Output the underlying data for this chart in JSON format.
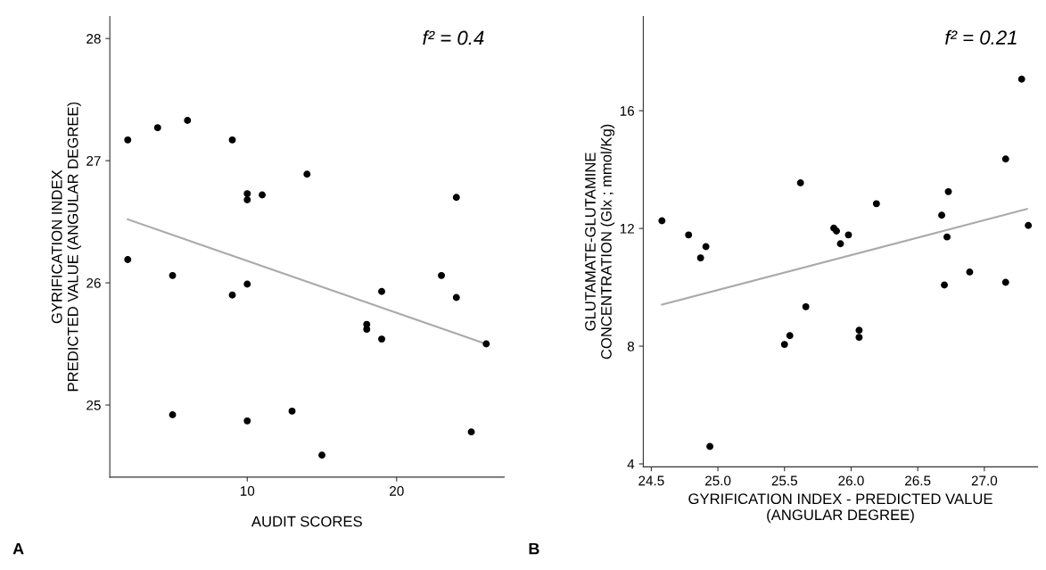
{
  "chart_data": [
    {
      "type": "scatter",
      "xlabel": "AUDIT SCORES",
      "ylabel": "GYRIFICATION INDEX\nPREDICTED VALUE (ANGULAR DEGREE)",
      "annotations": [
        "f² = 0.4",
        "A"
      ],
      "xlim": [
        0.8,
        27.2
      ],
      "xticks": [
        10,
        20
      ],
      "ylim": [
        24.41,
        28.18
      ],
      "yticks": [
        25,
        26,
        27,
        28
      ],
      "grid": false,
      "series": [
        {
          "marker": "circle",
          "color": "#000000",
          "x": [
            2,
            4,
            6,
            9,
            14,
            10,
            10,
            11,
            24,
            2,
            5,
            10,
            9,
            19,
            23,
            24,
            18,
            18,
            19,
            26,
            5,
            10,
            13,
            15,
            25
          ],
          "values": [
            27.17,
            27.27,
            27.33,
            27.17,
            26.89,
            26.73,
            26.68,
            26.72,
            26.7,
            26.19,
            26.06,
            25.99,
            25.9,
            25.93,
            26.06,
            25.88,
            25.66,
            25.62,
            25.54,
            25.5,
            24.92,
            24.87,
            24.95,
            24.59,
            24.78
          ]
        },
        {
          "type": "line",
          "marker": "none",
          "color": "#aaaaaa",
          "x": [
            2,
            26
          ],
          "values": [
            26.52,
            25.5
          ]
        }
      ]
    },
    {
      "type": "scatter",
      "xlabel": "GYRIFICATION INDEX - PREDICTED VALUE\n(ANGULAR DEGREE)",
      "ylabel": "GLUTAMATE-GLUTAMINE\nCONCENTRATION (Glx ; mmol/Kg)",
      "annotations": [
        "f² = 0.21",
        "B"
      ],
      "xlim": [
        24.44,
        27.4
      ],
      "xticks": [
        {
          "value": 24.5,
          "label": "24.5"
        },
        {
          "value": 25,
          "label": "25.0"
        },
        {
          "value": 25.5,
          "label": "25.5"
        },
        {
          "value": 26,
          "label": "26.0"
        },
        {
          "value": 26.5,
          "label": "26.5"
        },
        {
          "value": 27,
          "label": "27.0"
        }
      ],
      "ylim": [
        3.9,
        19.2
      ],
      "yticks": [
        4,
        8,
        12,
        16
      ],
      "grid": false,
      "series": [
        {
          "marker": "circle",
          "color": "#000000",
          "x": [
            24.58,
            24.78,
            24.87,
            24.91,
            24.94,
            25.5,
            25.54,
            25.62,
            25.66,
            25.87,
            25.89,
            25.92,
            25.98,
            26.06,
            26.06,
            26.19,
            26.68,
            26.7,
            26.72,
            26.73,
            26.89,
            27.16,
            27.16,
            27.28,
            27.33
          ],
          "values": [
            12.26,
            11.78,
            11.0,
            11.38,
            4.59,
            8.06,
            8.36,
            13.55,
            9.34,
            12.01,
            11.91,
            11.48,
            11.78,
            8.54,
            8.3,
            12.84,
            12.45,
            10.08,
            11.71,
            13.25,
            10.52,
            14.36,
            10.17,
            17.07,
            12.1
          ]
        },
        {
          "type": "line",
          "marker": "none",
          "color": "#aaaaaa",
          "x": [
            24.58,
            27.32
          ],
          "values": [
            9.41,
            12.66
          ]
        }
      ]
    }
  ]
}
